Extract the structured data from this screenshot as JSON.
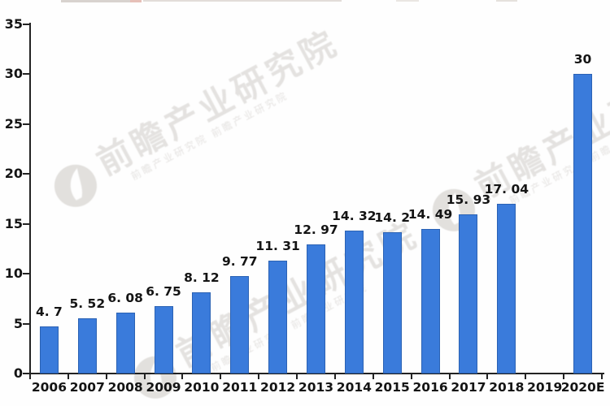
{
  "watermark": {
    "brand": "前瞻产业研究院",
    "subtext": "前瞻产业研究院 前瞻产业研究院"
  },
  "chart_data": {
    "type": "bar",
    "title": "",
    "xlabel": "",
    "ylabel": "",
    "categories": [
      "2006",
      "2007",
      "2008",
      "2009",
      "2010",
      "2011",
      "2012",
      "2013",
      "2014",
      "2015",
      "2016",
      "2017",
      "2018",
      "2019",
      "2020E"
    ],
    "values": [
      4.7,
      5.52,
      6.08,
      6.75,
      8.12,
      9.77,
      11.31,
      12.97,
      14.32,
      14.2,
      14.49,
      15.93,
      17.04,
      null,
      30
    ],
    "value_labels": [
      "4. 7",
      "5. 52",
      "6. 08",
      "6. 75",
      "8. 12",
      "9. 77",
      "11. 31",
      "12. 97",
      "14. 32",
      "14. 2",
      "14. 49",
      "15. 93",
      "17. 04",
      "",
      "30"
    ],
    "yticks": [
      0,
      5,
      10,
      15,
      20,
      25,
      30,
      35
    ],
    "ylim": [
      0,
      35
    ],
    "grid": false,
    "legend": "none",
    "bar_color": "#3a7bdb",
    "bar_border_color": "#2b62b4",
    "axis_color": "#222222",
    "label_color": "#141414"
  }
}
